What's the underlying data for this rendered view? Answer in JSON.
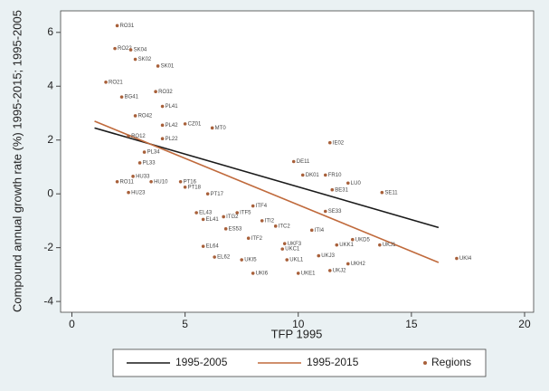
{
  "chart_data": {
    "type": "scatter",
    "xlabel": "TFP 1995",
    "ylabel": "Compound annual growth rate (%) 1995-2015; 1995-2005",
    "xlim": [
      -0.5,
      20.4
    ],
    "ylim": [
      -4.4,
      6.8
    ],
    "xticks": [
      0,
      5,
      10,
      15,
      20
    ],
    "yticks": [
      -4,
      -2,
      0,
      2,
      4,
      6
    ],
    "grid": false,
    "legend": "bottom",
    "series": [
      {
        "name": "1995-2005",
        "type": "line",
        "color": "#1a1a1a",
        "x": [
          1,
          16.2
        ],
        "values": [
          2.45,
          -1.25
        ]
      },
      {
        "name": "1995-2015",
        "type": "line",
        "color": "#c06a3c",
        "x": [
          1,
          16.2
        ],
        "values": [
          2.7,
          -2.55
        ]
      },
      {
        "name": "Regions",
        "type": "scatter",
        "color": "#a8603a",
        "x": [
          2.0,
          1.9,
          2.6,
          2.8,
          3.8,
          1.5,
          3.7,
          2.2,
          4.0,
          4.0,
          2.8,
          5.0,
          6.2,
          4.0,
          2.5,
          3.2,
          3.0,
          2.7,
          2.0,
          2.5,
          3.5,
          4.8,
          5.0,
          6.0,
          5.5,
          5.8,
          5.8,
          6.3,
          7.3,
          6.7,
          8.0,
          6.8,
          7.8,
          9.0,
          8.4,
          9.4,
          9.3,
          7.5,
          8.0,
          9.5,
          10.0,
          9.8,
          11.4,
          11.2,
          12.2,
          11.5,
          13.7,
          11.2,
          10.6,
          13.6,
          12.2,
          17.0,
          12.4,
          10.9,
          11.7,
          11.4,
          10.2
        ],
        "values": [
          6.25,
          5.4,
          5.35,
          5.0,
          4.75,
          4.15,
          3.8,
          3.6,
          3.25,
          2.55,
          2.9,
          2.6,
          2.45,
          2.05,
          2.15,
          1.55,
          1.15,
          0.65,
          0.45,
          0.05,
          0.45,
          0.45,
          0.25,
          0.0,
          -0.7,
          -0.95,
          -1.95,
          -2.35,
          -0.7,
          -0.85,
          -0.45,
          -1.3,
          -1.65,
          -1.2,
          -1.0,
          -1.85,
          -2.05,
          -2.45,
          -2.95,
          -2.45,
          -2.95,
          1.2,
          1.9,
          0.7,
          0.4,
          0.15,
          0.05,
          -0.65,
          -1.35,
          -1.9,
          -2.6,
          -2.4,
          -1.7,
          -2.3,
          -1.9,
          -2.85,
          0.7
        ],
        "labels": [
          "RO31",
          "RO22",
          "SK04",
          "SK02",
          "SK01",
          "RO21",
          "RO32",
          "BG41",
          "PL41",
          "PL42",
          "RO42",
          "CZ01",
          "MT0",
          "PL22",
          "RO12",
          "PL34",
          "PL33",
          "HU33",
          "RO11",
          "HU23",
          "HU10",
          "PT16",
          "PT18",
          "PT17",
          "EL43",
          "EL41",
          "EL64",
          "EL62",
          "ITF5",
          "ITG2",
          "ITF4",
          "ES53",
          "ITF2",
          "ITC2",
          "ITI2",
          "UKF3",
          "UKC1",
          "UKI5",
          "UKI6",
          "UKL1",
          "UKE1",
          "DE11",
          "IE02",
          "FR10",
          "LU0",
          "BE31",
          "SE11",
          "SE33",
          "ITI4",
          "UKJ1",
          "UKH2",
          "UKI4",
          "UKD5",
          "UKJ3",
          "UKK1",
          "UKJ2",
          "DK01"
        ]
      }
    ]
  }
}
